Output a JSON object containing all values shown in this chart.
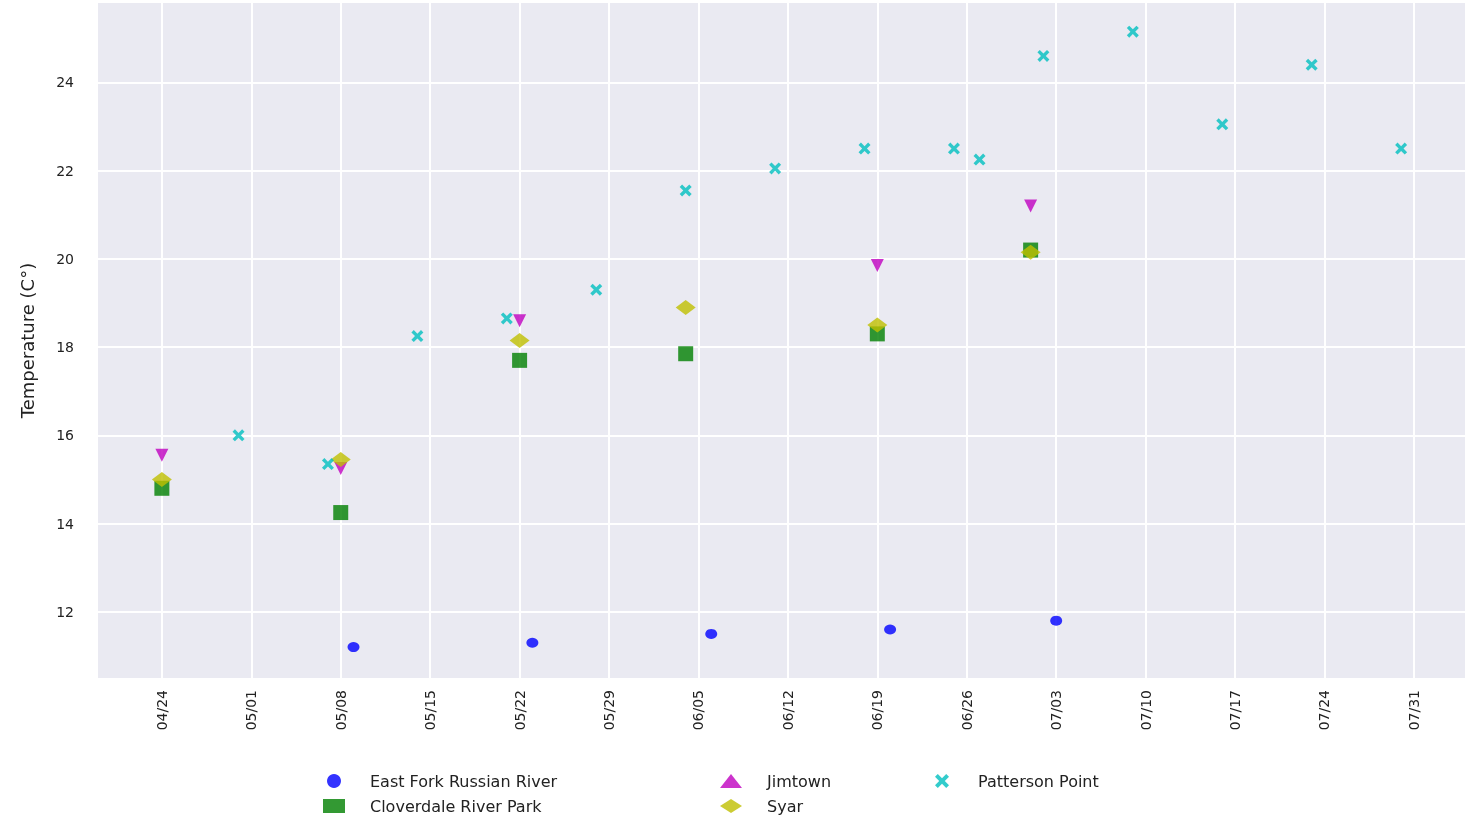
{
  "chart_data": {
    "type": "scatter",
    "ylabel": "Temperature (C°)",
    "xlim": [
      "--04-19",
      "--08-04"
    ],
    "ylim": [
      10.5,
      25.8
    ],
    "xticks": [
      {
        "value": "--04-24",
        "label": "04/24"
      },
      {
        "value": "--05-01",
        "label": "05/01"
      },
      {
        "value": "--05-08",
        "label": "05/08"
      },
      {
        "value": "--05-15",
        "label": "05/15"
      },
      {
        "value": "--05-22",
        "label": "05/22"
      },
      {
        "value": "--05-29",
        "label": "05/29"
      },
      {
        "value": "--06-05",
        "label": "06/05"
      },
      {
        "value": "--06-12",
        "label": "06/12"
      },
      {
        "value": "--06-19",
        "label": "06/19"
      },
      {
        "value": "--06-26",
        "label": "06/26"
      },
      {
        "value": "--07-03",
        "label": "07/03"
      },
      {
        "value": "--07-10",
        "label": "07/10"
      },
      {
        "value": "--07-17",
        "label": "07/17"
      },
      {
        "value": "--07-24",
        "label": "07/24"
      },
      {
        "value": "--07-31",
        "label": "07/31"
      }
    ],
    "yticks": [
      12,
      14,
      16,
      18,
      20,
      22,
      24
    ],
    "grid": true,
    "legend": "bottom",
    "series": [
      {
        "name": "East Fork Russian River",
        "color": "#0000ff",
        "marker": "circle",
        "x": [
          "--05-09",
          "--05-23",
          "--06-06",
          "--06-20",
          "--07-03"
        ],
        "values": [
          11.2,
          11.3,
          11.5,
          11.6,
          11.8
        ]
      },
      {
        "name": "Cloverdale River Park",
        "color": "#008000",
        "marker": "square",
        "x": [
          "--04-24",
          "--05-08",
          "--05-22",
          "--06-04",
          "--06-19",
          "--07-01"
        ],
        "values": [
          14.8,
          14.25,
          17.7,
          17.85,
          18.3,
          20.2
        ]
      },
      {
        "name": "Jimtown",
        "color": "#bf00bf",
        "marker": "triangle",
        "x": [
          "--04-24",
          "--05-08",
          "--05-22",
          "--06-04",
          "--06-19",
          "--07-01"
        ],
        "values": [
          15.55,
          15.25,
          18.6,
          null,
          19.85,
          21.2
        ]
      },
      {
        "name": "Syar",
        "color": "#bfbf00",
        "marker": "diamond",
        "x": [
          "--04-24",
          "--05-08",
          "--05-22",
          "--06-04",
          "--06-19",
          "--07-01"
        ],
        "values": [
          15.0,
          15.45,
          18.15,
          18.9,
          18.5,
          20.15
        ]
      },
      {
        "name": "Patterson Point",
        "color": "#00bfbf",
        "marker": "cross",
        "x": [
          "--04-30",
          "--05-07",
          "--05-14",
          "--05-21",
          "--05-28",
          "--06-04",
          "--06-11",
          "--06-18",
          "--06-25",
          "--06-27",
          "--07-02",
          "--07-09",
          "--07-16",
          "--07-23",
          "--07-30"
        ],
        "values": [
          16.0,
          15.35,
          18.25,
          18.65,
          19.3,
          21.55,
          22.05,
          22.5,
          22.5,
          22.25,
          24.6,
          25.15,
          23.05,
          24.4,
          22.5
        ]
      }
    ]
  }
}
